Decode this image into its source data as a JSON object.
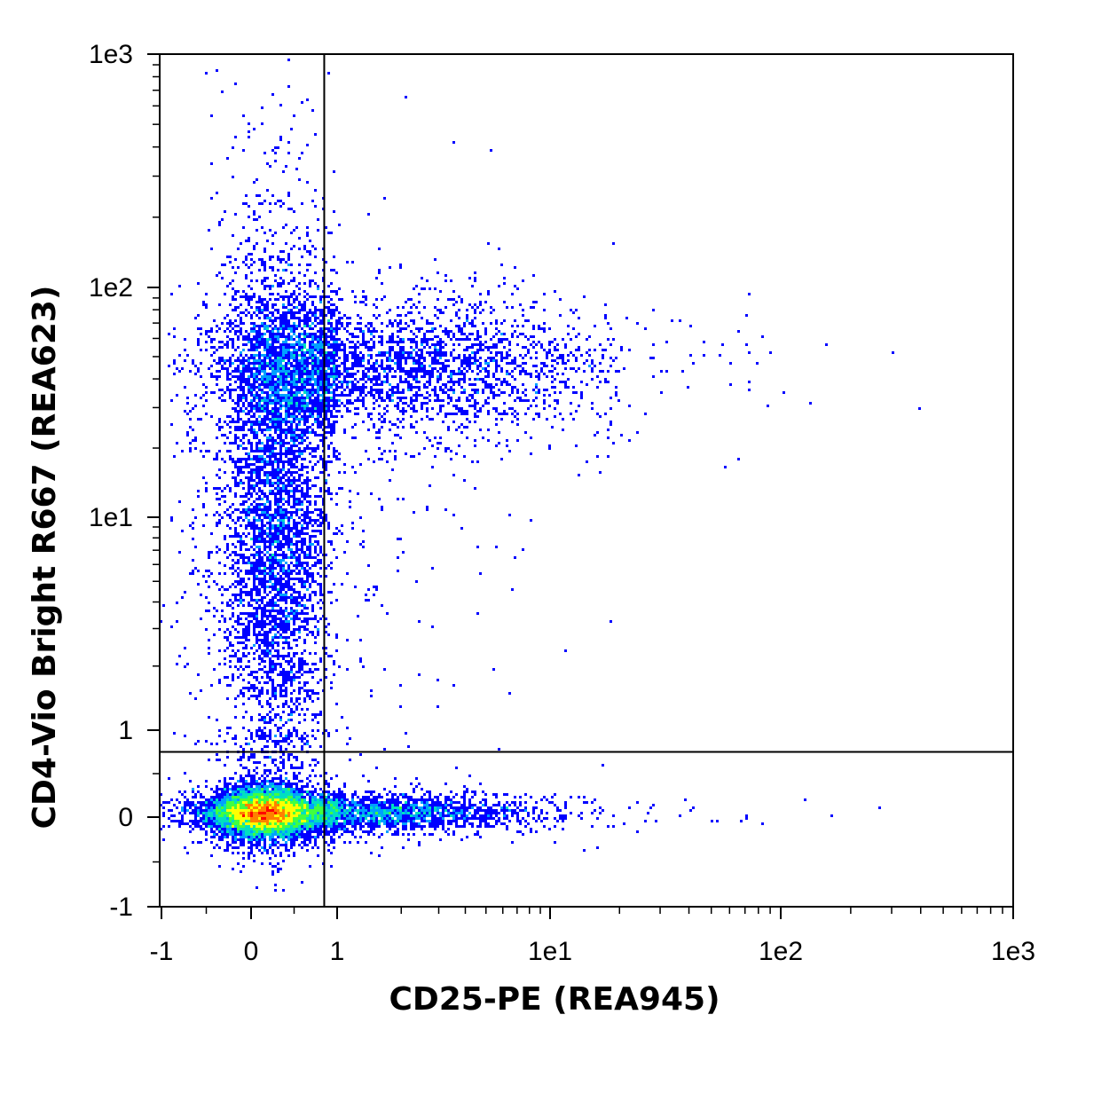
{
  "chart_data": {
    "type": "scatter",
    "subtype": "flow-cytometry-density-dot-plot",
    "title": "",
    "xlabel": "CD25-PE (REA945)",
    "ylabel": "CD4-Vio Bright R667 (REA623)",
    "x_scale": "biexponential",
    "y_scale": "biexponential",
    "xlim": [
      -1,
      1000
    ],
    "ylim": [
      -1,
      1000
    ],
    "x_ticks": [
      {
        "value": -1,
        "label": "-1"
      },
      {
        "value": 0,
        "label": "0"
      },
      {
        "value": 1,
        "label": "1"
      },
      {
        "value": 10,
        "label": "1e1"
      },
      {
        "value": 100,
        "label": "1e2"
      },
      {
        "value": 1000,
        "label": "1e3"
      }
    ],
    "y_ticks": [
      {
        "value": -1,
        "label": "-1"
      },
      {
        "value": 0,
        "label": "0"
      },
      {
        "value": 1,
        "label": "1"
      },
      {
        "value": 10,
        "label": "1e1"
      },
      {
        "value": 100,
        "label": "1e2"
      },
      {
        "value": 1000,
        "label": "1e3"
      }
    ],
    "quadrant_gates": {
      "x": 0.85,
      "y": 0.75
    },
    "grid": false,
    "legend": "none",
    "density_colors": [
      "#0000ff",
      "#00a0ff",
      "#00e0c0",
      "#40ff40",
      "#ffff00",
      "#ff8000",
      "#ff0000"
    ],
    "populations": [
      {
        "x_center": 0.15,
        "y_center": 0.05,
        "x_spread": 0.28,
        "y_spread": 0.12,
        "relative_size": 1.0
      },
      {
        "x_center": 0.28,
        "y_center": 9.0,
        "x_spread": 0.3,
        "y_spread": 0.55,
        "relative_size": 0.55
      },
      {
        "x_center": 0.6,
        "y_center": 45.0,
        "x_spread": 0.45,
        "y_spread": 0.15,
        "relative_size": 0.35
      },
      {
        "x_center": 3.0,
        "y_center": 45.0,
        "x_spread": 0.35,
        "y_spread": 0.13,
        "relative_size": 0.15
      },
      {
        "x_center": 1.4,
        "y_center": 0.05,
        "x_spread": 0.35,
        "y_spread": 0.1,
        "relative_size": 0.25
      }
    ]
  }
}
